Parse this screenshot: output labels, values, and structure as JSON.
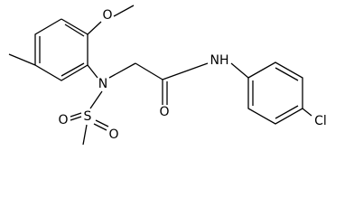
{
  "atoms": {
    "methoxy_oxygen": "O",
    "amine_nitrogen": "N",
    "sulfur": "S",
    "sulfonyl_oxygen_1": "O",
    "sulfonyl_oxygen_2": "O",
    "carbonyl_oxygen": "O",
    "amide_nh": "NH",
    "chlorine": "Cl"
  }
}
